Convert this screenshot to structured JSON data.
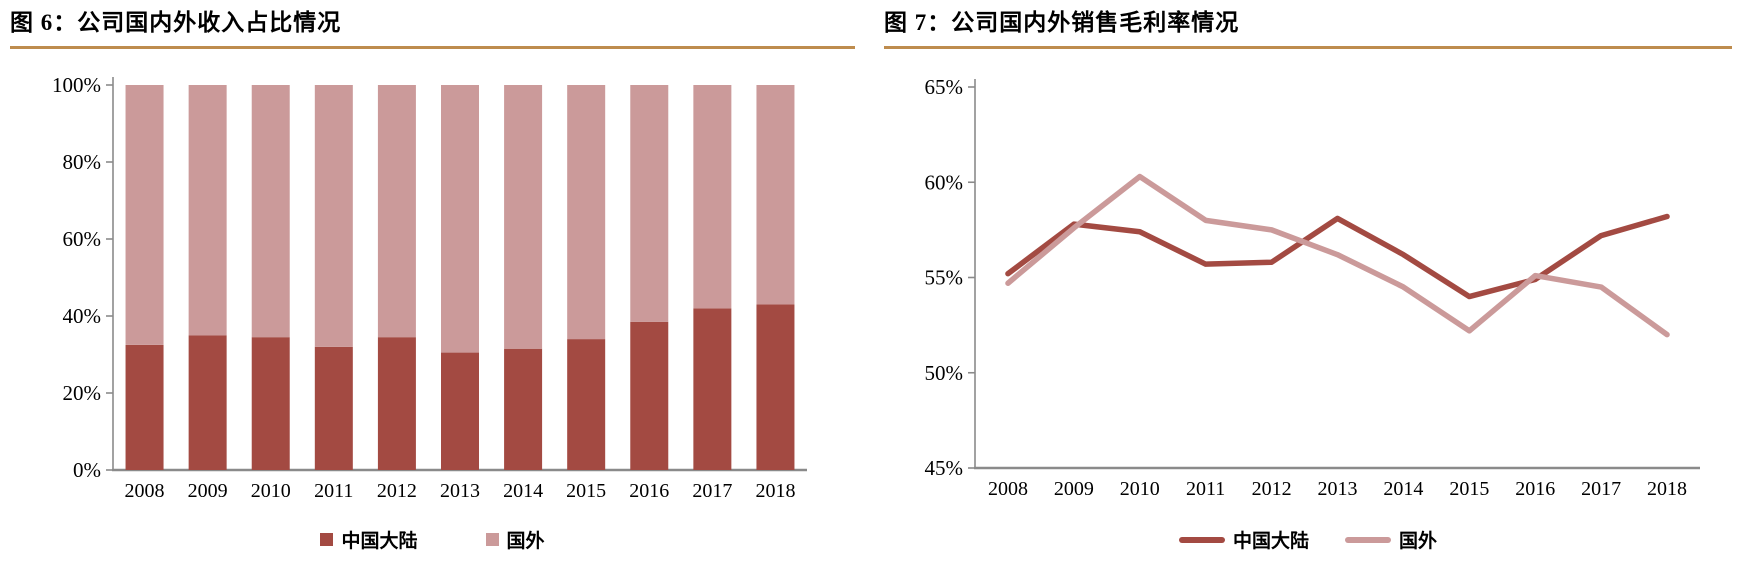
{
  "theme": {
    "title_rule_color": "#BE8C4E",
    "axis_color": "#8A8A8A",
    "text_color": "#000000",
    "series_dark_red": "#A34A42",
    "series_light_rose": "#CB9A9A"
  },
  "chart_data": [
    {
      "type": "bar",
      "stacked": true,
      "percent_stacked": true,
      "title": "图 6：公司国内外收入占比情况",
      "xlabel": "",
      "ylabel": "",
      "categories": [
        "2008",
        "2009",
        "2010",
        "2011",
        "2012",
        "2013",
        "2014",
        "2015",
        "2016",
        "2017",
        "2018"
      ],
      "series": [
        {
          "name": "中国大陆",
          "color": "#A34A42",
          "values": [
            32.5,
            35,
            34.5,
            32,
            34.5,
            30.5,
            31.5,
            34,
            38.5,
            42,
            43
          ]
        },
        {
          "name": "国外",
          "color": "#CB9A9A",
          "values": [
            67.5,
            65,
            65.5,
            68,
            65.5,
            69.5,
            68.5,
            66,
            61.5,
            58,
            57
          ]
        }
      ],
      "ylim": [
        0,
        100
      ],
      "ytick_labels": [
        "0%",
        "20%",
        "40%",
        "60%",
        "80%",
        "100%"
      ],
      "grid": false,
      "legend_position": "bottom",
      "legend_entries": [
        "中国大陆",
        "国外"
      ]
    },
    {
      "type": "line",
      "title": "图 7：公司国内外销售毛利率情况",
      "xlabel": "",
      "ylabel": "",
      "categories": [
        "2008",
        "2009",
        "2010",
        "2011",
        "2012",
        "2013",
        "2014",
        "2015",
        "2016",
        "2017",
        "2018"
      ],
      "series": [
        {
          "name": "中国大陆",
          "color": "#A34A42",
          "values": [
            55.2,
            57.8,
            57.4,
            55.7,
            55.8,
            58.1,
            56.2,
            54.0,
            54.9,
            57.2,
            58.2
          ]
        },
        {
          "name": "国外",
          "color": "#CB9A9A",
          "values": [
            54.7,
            57.6,
            60.3,
            58.0,
            57.5,
            56.2,
            54.5,
            52.2,
            55.1,
            54.5,
            52.0
          ]
        }
      ],
      "ylim": [
        45,
        65
      ],
      "ytick_labels": [
        "45%",
        "50%",
        "55%",
        "60%",
        "65%"
      ],
      "grid": false,
      "legend_position": "bottom",
      "legend_entries": [
        "中国大陆",
        "国外"
      ]
    }
  ]
}
